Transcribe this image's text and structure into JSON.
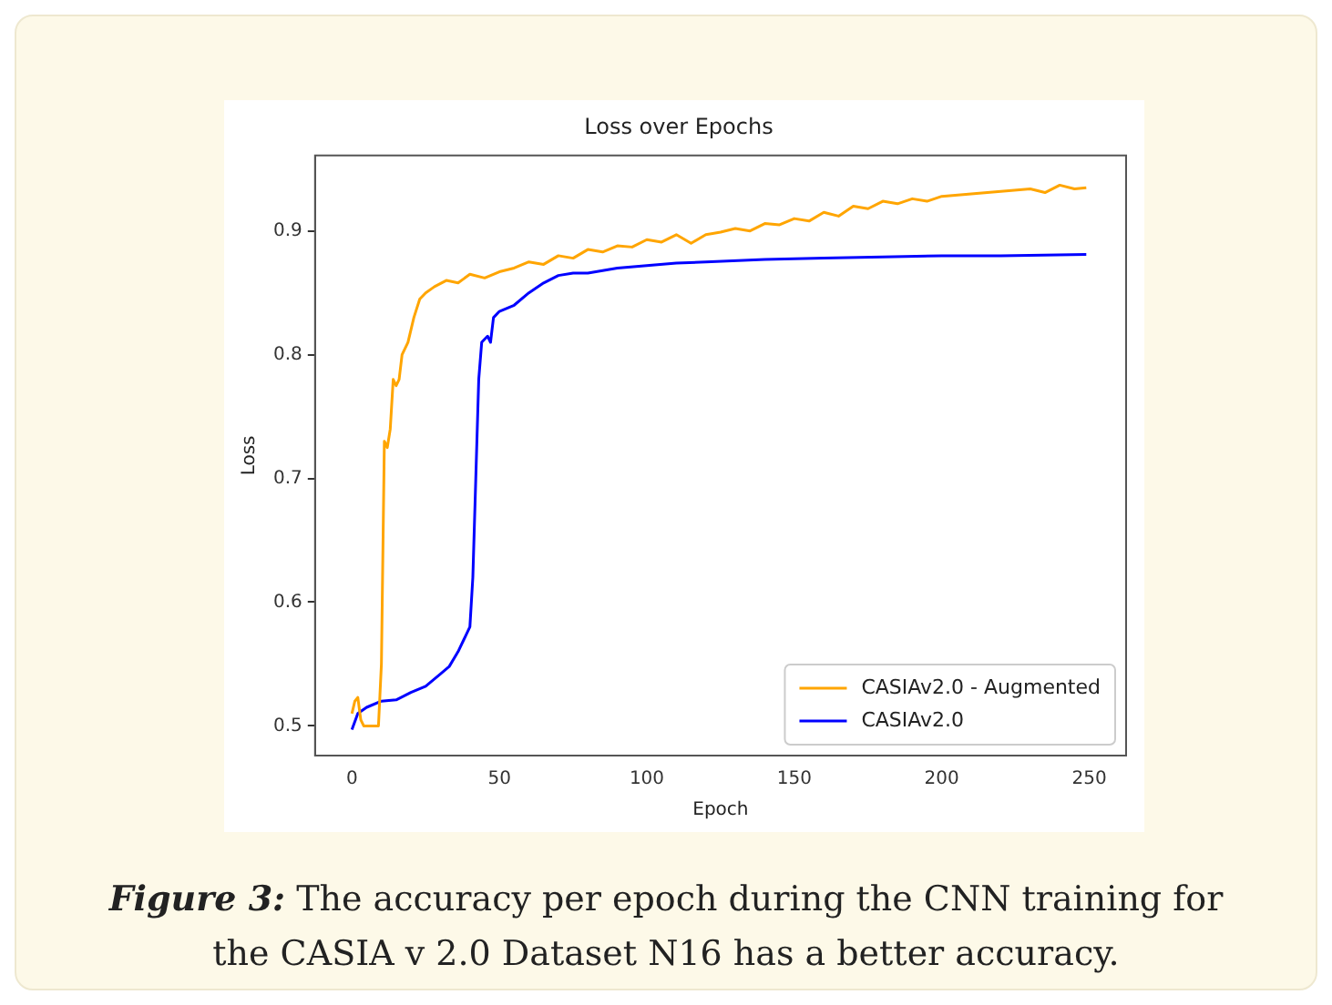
{
  "chart_data": {
    "type": "line",
    "title": "Loss over Epochs",
    "xlabel": "Epoch",
    "ylabel": "Loss",
    "xlim": [
      -12.5,
      262.5
    ],
    "xticks": [
      0,
      50,
      100,
      150,
      200,
      250
    ],
    "ylim": [
      0.476,
      0.961
    ],
    "yticks": [
      0.5,
      0.6,
      0.7,
      0.8,
      0.9
    ],
    "grid": false,
    "legend": "bottom right",
    "marker": "none",
    "line_style": "solid",
    "annotations": [
      "Figure 3: The accuracy per epoch during the CNN training for the CASIA v 2.0 Dataset N16 has a better accuracy."
    ],
    "series": [
      {
        "name": "CASIAv2.0 - Augmented",
        "color": "#ffa500",
        "x": [
          0,
          1,
          2,
          3,
          4,
          9,
          10,
          11,
          12,
          13,
          14,
          15,
          16,
          17,
          19,
          21,
          23,
          25,
          28,
          32,
          36,
          40,
          45,
          50,
          55,
          60,
          65,
          70,
          75,
          80,
          85,
          90,
          95,
          100,
          105,
          110,
          115,
          120,
          125,
          130,
          135,
          140,
          145,
          150,
          155,
          160,
          165,
          170,
          175,
          180,
          185,
          190,
          195,
          200,
          210,
          220,
          230,
          235,
          240,
          245,
          249
        ],
        "values": [
          0.51,
          0.52,
          0.523,
          0.505,
          0.5,
          0.5,
          0.55,
          0.73,
          0.725,
          0.74,
          0.78,
          0.775,
          0.78,
          0.8,
          0.81,
          0.83,
          0.845,
          0.85,
          0.855,
          0.86,
          0.858,
          0.865,
          0.862,
          0.867,
          0.87,
          0.875,
          0.873,
          0.88,
          0.878,
          0.885,
          0.883,
          0.888,
          0.887,
          0.893,
          0.891,
          0.897,
          0.89,
          0.897,
          0.899,
          0.902,
          0.9,
          0.906,
          0.905,
          0.91,
          0.908,
          0.915,
          0.912,
          0.92,
          0.918,
          0.924,
          0.922,
          0.926,
          0.924,
          0.928,
          0.93,
          0.932,
          0.934,
          0.931,
          0.937,
          0.934,
          0.935
        ]
      },
      {
        "name": "CASIAv2.0",
        "color": "#0000ff",
        "x": [
          0,
          2,
          5,
          10,
          15,
          20,
          25,
          30,
          33,
          36,
          38,
          40,
          41,
          42,
          43,
          44,
          46,
          47,
          48,
          50,
          55,
          60,
          65,
          70,
          75,
          80,
          90,
          100,
          110,
          120,
          140,
          160,
          180,
          200,
          220,
          249
        ],
        "values": [
          0.497,
          0.51,
          0.515,
          0.52,
          0.521,
          0.527,
          0.532,
          0.542,
          0.548,
          0.56,
          0.57,
          0.58,
          0.62,
          0.7,
          0.78,
          0.81,
          0.815,
          0.81,
          0.83,
          0.835,
          0.84,
          0.85,
          0.858,
          0.864,
          0.866,
          0.866,
          0.87,
          0.872,
          0.874,
          0.875,
          0.877,
          0.878,
          0.879,
          0.88,
          0.88,
          0.881
        ]
      }
    ]
  }
}
